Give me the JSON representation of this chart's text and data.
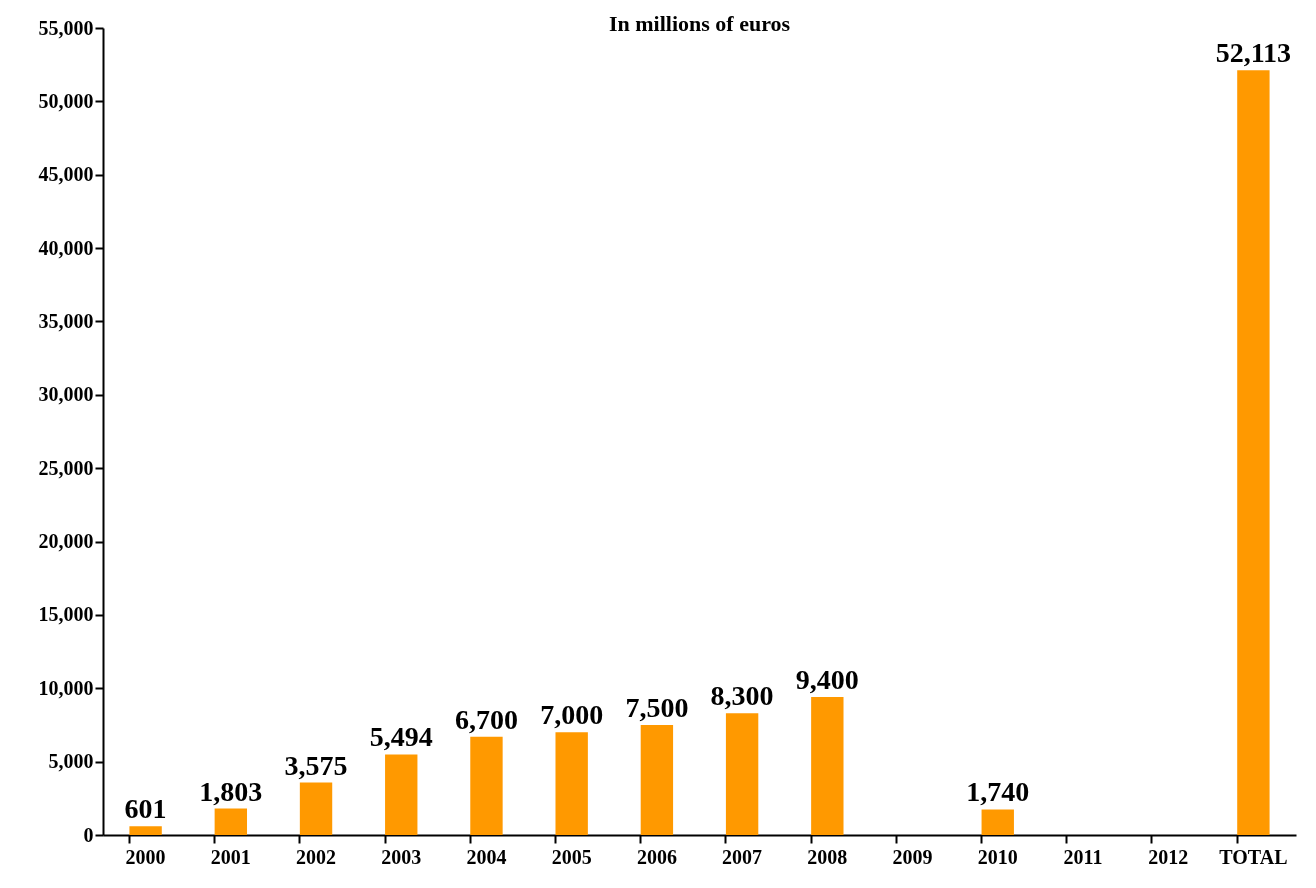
{
  "chart_data": {
    "type": "bar",
    "title": "In millions of euros",
    "categories": [
      "2000",
      "2001",
      "2002",
      "2003",
      "2004",
      "2005",
      "2006",
      "2007",
      "2008",
      "2009",
      "2010",
      "2011",
      "2012",
      "TOTAL"
    ],
    "values": [
      601,
      1803,
      3575,
      5494,
      6700,
      7000,
      7500,
      8300,
      9400,
      null,
      1740,
      null,
      null,
      52113
    ],
    "color": "#ff9900",
    "ylim": [
      0,
      55000
    ],
    "yticks": [
      0,
      {
        "value": 5000,
        "label": "5,000"
      },
      {
        "value": 10000,
        "label": "10,000"
      },
      {
        "value": 15000,
        "label": "15,000"
      },
      {
        "value": 20000,
        "label": "20,000"
      },
      {
        "value": 25000,
        "label": "25,000"
      },
      {
        "value": 30000,
        "label": "30,000"
      },
      {
        "value": 35000,
        "label": "35,000"
      },
      {
        "value": 40000,
        "label": "40,000"
      },
      {
        "value": 45000,
        "label": "45,000"
      },
      {
        "value": 50000,
        "label": "50,000"
      },
      {
        "value": 55000,
        "label": "55,000"
      }
    ],
    "value_labels": [
      "601",
      "1,803",
      "3,575",
      "5,494",
      "6,700",
      "7,000",
      "7,500",
      "8,300",
      "9,400",
      null,
      "1,740",
      null,
      null,
      "52,113"
    ],
    "grid": false
  }
}
